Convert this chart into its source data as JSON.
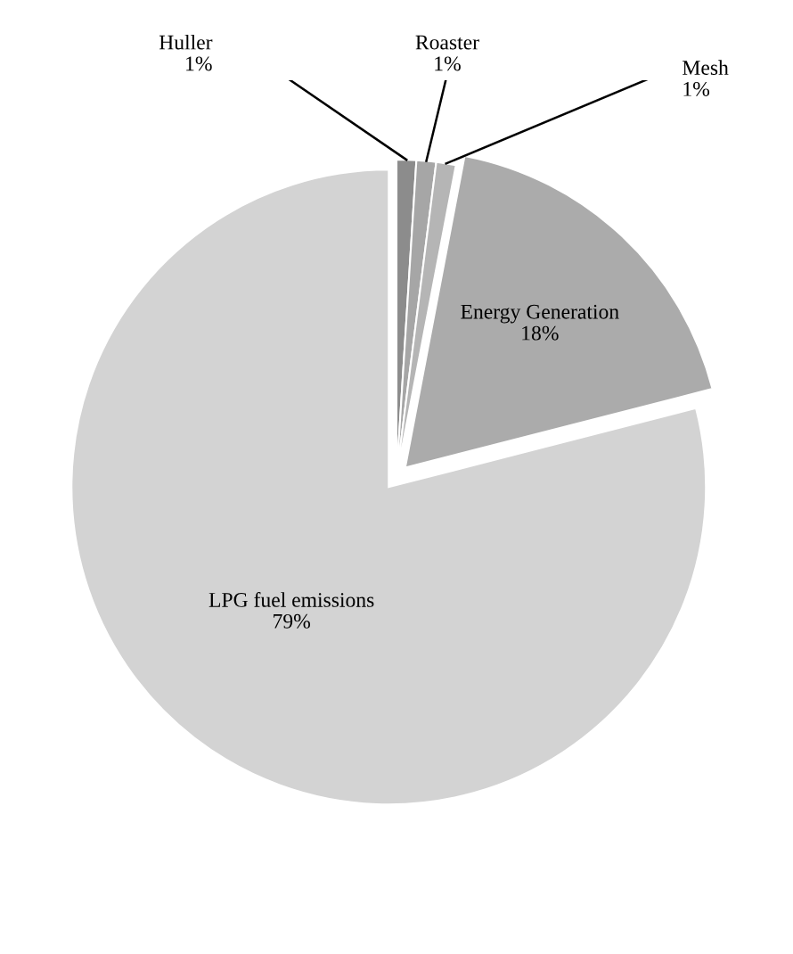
{
  "chart_data": {
    "type": "pie",
    "categories": [
      "Huller",
      "Roaster",
      "Mesh",
      "Energy Generation",
      "LPG fuel emissions"
    ],
    "values": [
      1,
      1,
      1,
      18,
      79
    ],
    "value_labels": [
      "1%",
      "1%",
      "1%",
      "18%",
      "79%"
    ],
    "colors": [
      "#8c8c8c",
      "#a6a6a6",
      "#b5b5b5",
      "#ababab",
      "#d3d3d3"
    ]
  }
}
